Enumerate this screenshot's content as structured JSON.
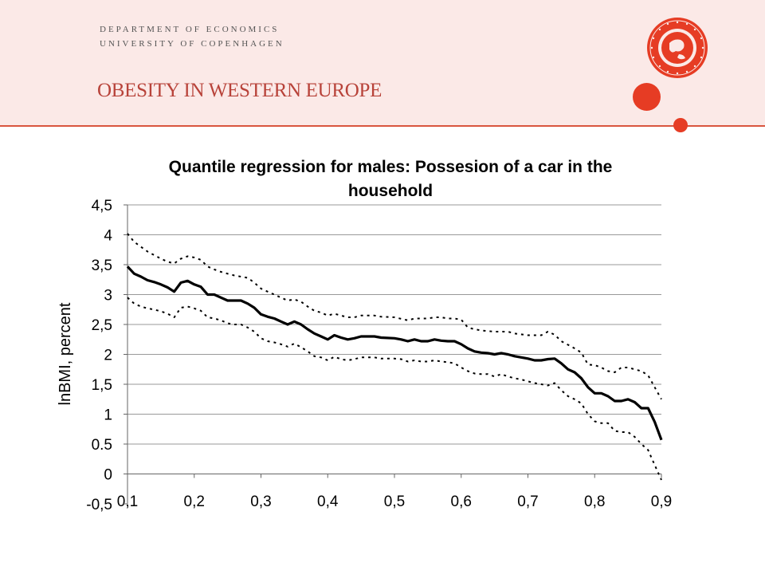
{
  "header": {
    "dept_line1": "DEPARTMENT OF ECONOMICS",
    "dept_line2": "UNIVERSITY OF COPENHAGEN",
    "slide_title": "OBESITY IN WESTERN EUROPE"
  },
  "seal": {
    "icon": "university-seal-icon",
    "color": "#e63c24"
  },
  "chart_data": {
    "type": "line",
    "title": [
      "Quantile regression for males: Possesion of a car in the",
      "household"
    ],
    "ylabel": "lnBMI, percent",
    "xlabel": "",
    "xlim": [
      0.1,
      0.9
    ],
    "ylim": [
      -0.5,
      4.5
    ],
    "x_ticks": [
      0.1,
      0.2,
      0.3,
      0.4,
      0.5,
      0.6,
      0.7,
      0.8,
      0.9
    ],
    "x_tick_labels": [
      "0,1",
      "0,2",
      "0,3",
      "0,4",
      "0,5",
      "0,6",
      "0,7",
      "0,8",
      "0,9"
    ],
    "y_ticks": [
      4.5,
      4,
      3.5,
      3,
      2.5,
      2,
      1.5,
      1,
      0.5,
      0,
      -0.5
    ],
    "y_tick_labels": [
      "4,5",
      "4",
      "3,5",
      "3",
      "2,5",
      "2",
      "1,5",
      "1",
      "0.5",
      "0",
      "-0,5"
    ],
    "grid": "horizontal",
    "legend": "none",
    "series": [
      {
        "style": "solid",
        "points": [
          [
            0.1,
            3.47
          ],
          [
            0.11,
            3.35
          ],
          [
            0.12,
            3.3
          ],
          [
            0.13,
            3.24
          ],
          [
            0.14,
            3.21
          ],
          [
            0.15,
            3.17
          ],
          [
            0.16,
            3.12
          ],
          [
            0.17,
            3.05
          ],
          [
            0.18,
            3.2
          ],
          [
            0.19,
            3.23
          ],
          [
            0.2,
            3.17
          ],
          [
            0.21,
            3.13
          ],
          [
            0.22,
            3.0
          ],
          [
            0.23,
            3.0
          ],
          [
            0.24,
            2.95
          ],
          [
            0.25,
            2.9
          ],
          [
            0.26,
            2.9
          ],
          [
            0.27,
            2.9
          ],
          [
            0.28,
            2.85
          ],
          [
            0.29,
            2.78
          ],
          [
            0.3,
            2.67
          ],
          [
            0.31,
            2.63
          ],
          [
            0.32,
            2.6
          ],
          [
            0.33,
            2.55
          ],
          [
            0.34,
            2.5
          ],
          [
            0.35,
            2.55
          ],
          [
            0.36,
            2.5
          ],
          [
            0.37,
            2.42
          ],
          [
            0.38,
            2.35
          ],
          [
            0.39,
            2.3
          ],
          [
            0.4,
            2.25
          ],
          [
            0.41,
            2.32
          ],
          [
            0.42,
            2.28
          ],
          [
            0.43,
            2.25
          ],
          [
            0.44,
            2.27
          ],
          [
            0.45,
            2.3
          ],
          [
            0.47,
            2.3
          ],
          [
            0.48,
            2.28
          ],
          [
            0.5,
            2.27
          ],
          [
            0.51,
            2.25
          ],
          [
            0.52,
            2.22
          ],
          [
            0.53,
            2.25
          ],
          [
            0.54,
            2.22
          ],
          [
            0.55,
            2.22
          ],
          [
            0.56,
            2.25
          ],
          [
            0.57,
            2.23
          ],
          [
            0.58,
            2.22
          ],
          [
            0.59,
            2.22
          ],
          [
            0.6,
            2.17
          ],
          [
            0.61,
            2.1
          ],
          [
            0.62,
            2.05
          ],
          [
            0.63,
            2.03
          ],
          [
            0.64,
            2.02
          ],
          [
            0.65,
            2.0
          ],
          [
            0.66,
            2.02
          ],
          [
            0.67,
            2.0
          ],
          [
            0.68,
            1.97
          ],
          [
            0.69,
            1.95
          ],
          [
            0.7,
            1.93
          ],
          [
            0.71,
            1.9
          ],
          [
            0.72,
            1.9
          ],
          [
            0.73,
            1.92
          ],
          [
            0.74,
            1.93
          ],
          [
            0.75,
            1.85
          ],
          [
            0.76,
            1.75
          ],
          [
            0.77,
            1.7
          ],
          [
            0.78,
            1.6
          ],
          [
            0.79,
            1.45
          ],
          [
            0.8,
            1.35
          ],
          [
            0.81,
            1.35
          ],
          [
            0.82,
            1.3
          ],
          [
            0.83,
            1.22
          ],
          [
            0.84,
            1.22
          ],
          [
            0.85,
            1.25
          ],
          [
            0.86,
            1.2
          ],
          [
            0.87,
            1.1
          ],
          [
            0.88,
            1.1
          ],
          [
            0.89,
            0.87
          ],
          [
            0.9,
            0.57
          ]
        ]
      },
      {
        "style": "dotted",
        "points": [
          [
            0.1,
            4.02
          ],
          [
            0.11,
            3.88
          ],
          [
            0.12,
            3.8
          ],
          [
            0.13,
            3.72
          ],
          [
            0.14,
            3.66
          ],
          [
            0.15,
            3.6
          ],
          [
            0.16,
            3.55
          ],
          [
            0.17,
            3.52
          ],
          [
            0.18,
            3.6
          ],
          [
            0.19,
            3.64
          ],
          [
            0.2,
            3.62
          ],
          [
            0.21,
            3.58
          ],
          [
            0.22,
            3.47
          ],
          [
            0.23,
            3.42
          ],
          [
            0.24,
            3.38
          ],
          [
            0.25,
            3.35
          ],
          [
            0.26,
            3.32
          ],
          [
            0.27,
            3.3
          ],
          [
            0.28,
            3.28
          ],
          [
            0.29,
            3.2
          ],
          [
            0.3,
            3.1
          ],
          [
            0.31,
            3.05
          ],
          [
            0.32,
            3.0
          ],
          [
            0.33,
            2.95
          ],
          [
            0.34,
            2.9
          ],
          [
            0.35,
            2.92
          ],
          [
            0.36,
            2.88
          ],
          [
            0.37,
            2.8
          ],
          [
            0.38,
            2.73
          ],
          [
            0.39,
            2.7
          ],
          [
            0.4,
            2.65
          ],
          [
            0.41,
            2.68
          ],
          [
            0.42,
            2.65
          ],
          [
            0.43,
            2.62
          ],
          [
            0.44,
            2.62
          ],
          [
            0.45,
            2.65
          ],
          [
            0.47,
            2.65
          ],
          [
            0.48,
            2.63
          ],
          [
            0.5,
            2.62
          ],
          [
            0.52,
            2.57
          ],
          [
            0.53,
            2.6
          ],
          [
            0.55,
            2.6
          ],
          [
            0.56,
            2.62
          ],
          [
            0.57,
            2.62
          ],
          [
            0.58,
            2.6
          ],
          [
            0.59,
            2.6
          ],
          [
            0.6,
            2.58
          ],
          [
            0.61,
            2.45
          ],
          [
            0.62,
            2.42
          ],
          [
            0.63,
            2.4
          ],
          [
            0.65,
            2.38
          ],
          [
            0.66,
            2.38
          ],
          [
            0.67,
            2.38
          ],
          [
            0.68,
            2.35
          ],
          [
            0.7,
            2.32
          ],
          [
            0.72,
            2.32
          ],
          [
            0.73,
            2.38
          ],
          [
            0.74,
            2.33
          ],
          [
            0.75,
            2.22
          ],
          [
            0.76,
            2.16
          ],
          [
            0.77,
            2.1
          ],
          [
            0.78,
            2.03
          ],
          [
            0.79,
            1.83
          ],
          [
            0.8,
            1.82
          ],
          [
            0.81,
            1.78
          ],
          [
            0.82,
            1.72
          ],
          [
            0.83,
            1.7
          ],
          [
            0.84,
            1.78
          ],
          [
            0.85,
            1.78
          ],
          [
            0.86,
            1.75
          ],
          [
            0.87,
            1.72
          ],
          [
            0.88,
            1.65
          ],
          [
            0.89,
            1.45
          ],
          [
            0.9,
            1.25
          ]
        ]
      },
      {
        "style": "dotted",
        "points": [
          [
            0.1,
            2.95
          ],
          [
            0.11,
            2.85
          ],
          [
            0.12,
            2.8
          ],
          [
            0.13,
            2.77
          ],
          [
            0.14,
            2.75
          ],
          [
            0.15,
            2.72
          ],
          [
            0.16,
            2.68
          ],
          [
            0.17,
            2.62
          ],
          [
            0.18,
            2.78
          ],
          [
            0.19,
            2.8
          ],
          [
            0.2,
            2.77
          ],
          [
            0.21,
            2.73
          ],
          [
            0.22,
            2.62
          ],
          [
            0.23,
            2.6
          ],
          [
            0.24,
            2.57
          ],
          [
            0.25,
            2.52
          ],
          [
            0.26,
            2.5
          ],
          [
            0.27,
            2.5
          ],
          [
            0.28,
            2.45
          ],
          [
            0.29,
            2.38
          ],
          [
            0.3,
            2.27
          ],
          [
            0.31,
            2.22
          ],
          [
            0.32,
            2.2
          ],
          [
            0.33,
            2.17
          ],
          [
            0.34,
            2.13
          ],
          [
            0.35,
            2.18
          ],
          [
            0.36,
            2.12
          ],
          [
            0.37,
            2.05
          ],
          [
            0.38,
            1.97
          ],
          [
            0.39,
            1.95
          ],
          [
            0.4,
            1.9
          ],
          [
            0.41,
            1.96
          ],
          [
            0.42,
            1.92
          ],
          [
            0.43,
            1.9
          ],
          [
            0.44,
            1.92
          ],
          [
            0.45,
            1.95
          ],
          [
            0.47,
            1.95
          ],
          [
            0.48,
            1.93
          ],
          [
            0.5,
            1.93
          ],
          [
            0.51,
            1.92
          ],
          [
            0.52,
            1.88
          ],
          [
            0.53,
            1.9
          ],
          [
            0.54,
            1.88
          ],
          [
            0.55,
            1.88
          ],
          [
            0.56,
            1.9
          ],
          [
            0.57,
            1.88
          ],
          [
            0.58,
            1.87
          ],
          [
            0.59,
            1.85
          ],
          [
            0.6,
            1.78
          ],
          [
            0.61,
            1.72
          ],
          [
            0.62,
            1.68
          ],
          [
            0.63,
            1.67
          ],
          [
            0.64,
            1.67
          ],
          [
            0.65,
            1.63
          ],
          [
            0.66,
            1.67
          ],
          [
            0.67,
            1.63
          ],
          [
            0.68,
            1.6
          ],
          [
            0.69,
            1.58
          ],
          [
            0.7,
            1.55
          ],
          [
            0.71,
            1.52
          ],
          [
            0.72,
            1.5
          ],
          [
            0.73,
            1.48
          ],
          [
            0.74,
            1.52
          ],
          [
            0.75,
            1.4
          ],
          [
            0.76,
            1.3
          ],
          [
            0.77,
            1.25
          ],
          [
            0.78,
            1.18
          ],
          [
            0.79,
            1.0
          ],
          [
            0.8,
            0.88
          ],
          [
            0.81,
            0.85
          ],
          [
            0.82,
            0.85
          ],
          [
            0.83,
            0.72
          ],
          [
            0.84,
            0.7
          ],
          [
            0.85,
            0.7
          ],
          [
            0.86,
            0.62
          ],
          [
            0.87,
            0.5
          ],
          [
            0.88,
            0.4
          ],
          [
            0.89,
            0.15
          ],
          [
            0.9,
            -0.1
          ]
        ]
      }
    ]
  }
}
